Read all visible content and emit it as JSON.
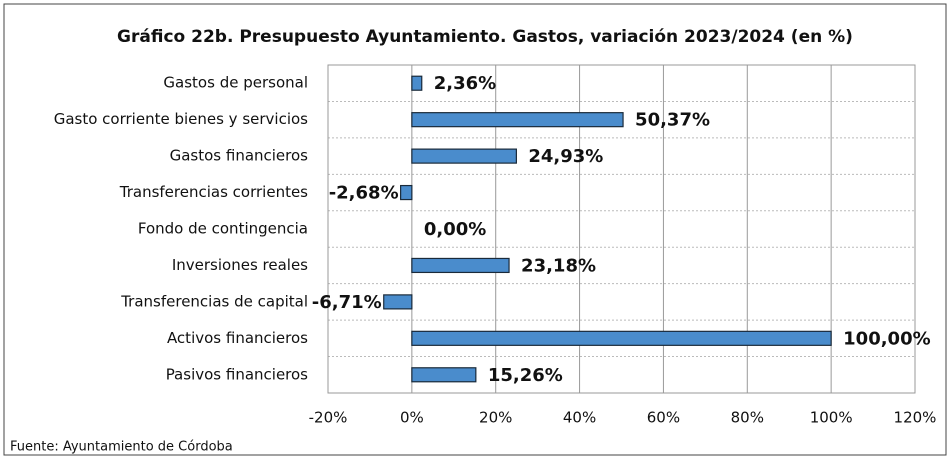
{
  "chart_data": {
    "type": "hbar",
    "title": "Gráfico 22b. Presupuesto Ayuntamiento. Gastos, variación 2023/2024 (en %)",
    "categories": [
      "Gastos de personal",
      "Gasto corriente bienes y servicios",
      "Gastos financieros",
      "Transferencias corrientes",
      "Fondo de contingencia",
      "Inversiones reales",
      "Transferencias de capital",
      "Activos financieros",
      "Pasivos financieros"
    ],
    "values": [
      2.36,
      50.37,
      24.93,
      -2.68,
      0,
      23.18,
      -6.71,
      100,
      15.26
    ],
    "value_labels": [
      "2,36%",
      "50,37%",
      "24,93%",
      "-2,68%",
      "0,00%",
      "23,18%",
      "-6,71%",
      "100,00%",
      "15,26%"
    ],
    "color": "#4a8ccc",
    "xlim": [
      -20,
      120
    ],
    "xticks": [
      {
        "value": -20,
        "label": "-20%"
      },
      {
        "value": 0,
        "label": "0%"
      },
      {
        "value": 20,
        "label": "20%"
      },
      {
        "value": 40,
        "label": "40%"
      },
      {
        "value": 60,
        "label": "60%"
      },
      {
        "value": 80,
        "label": "80%"
      },
      {
        "value": 100,
        "label": "100%"
      },
      {
        "value": 120,
        "label": "120%"
      }
    ],
    "grid": true,
    "source": "Fuente: Ayuntamiento de Córdoba"
  }
}
